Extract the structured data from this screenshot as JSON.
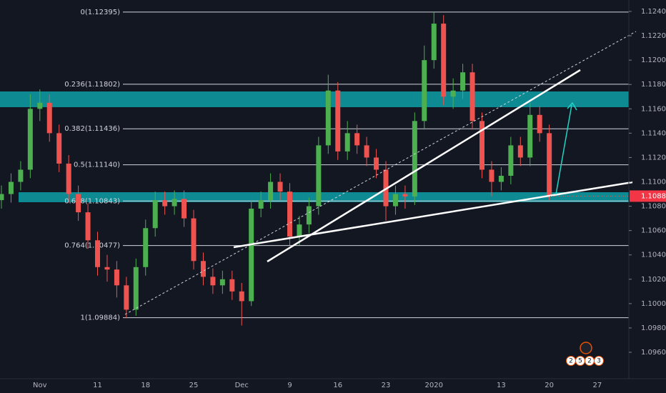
{
  "chart_data": {
    "type": "candlestick",
    "categories": [
      null,
      null,
      null,
      null,
      "Nov",
      null,
      null,
      null,
      null,
      null,
      "11",
      null,
      null,
      null,
      null,
      "18",
      null,
      null,
      null,
      null,
      "25",
      null,
      null,
      null,
      null,
      "Dec",
      null,
      null,
      null,
      null,
      "9",
      null,
      null,
      null,
      null,
      "16",
      null,
      null,
      null,
      null,
      "23",
      null,
      null,
      null,
      null,
      "2020",
      null,
      null,
      null,
      null,
      null,
      null,
      "13",
      null,
      null,
      null,
      null,
      "20",
      null,
      null,
      null,
      null,
      "27"
    ],
    "open": [
      1.1085,
      1.109,
      1.11,
      1.111,
      1.116,
      1.1165,
      1.114,
      1.1115,
      1.109,
      1.1075,
      1.1052,
      1.103,
      1.1028,
      1.1015,
      1.0995,
      1.103,
      1.1062,
      1.1085,
      1.108,
      1.1086,
      1.107,
      1.1035,
      1.1022,
      1.1015,
      1.102,
      1.101,
      1.1002,
      1.1078,
      1.1085,
      1.11,
      1.1092,
      1.1055,
      1.1065,
      1.108,
      1.113,
      1.1175,
      1.1125,
      1.114,
      1.113,
      1.112,
      1.111,
      1.108,
      1.109,
      1.1088,
      1.115,
      1.12,
      1.123,
      1.117,
      1.1175,
      1.119,
      1.115,
      1.111,
      1.11,
      1.1105,
      1.113,
      1.112,
      1.1155,
      1.114,
      null,
      null,
      null,
      null,
      null
    ],
    "high": [
      1.1097,
      1.1107,
      1.1117,
      1.1172,
      1.1176,
      1.1172,
      1.1147,
      1.1122,
      1.1097,
      1.1082,
      1.1059,
      1.104,
      1.1035,
      1.1022,
      1.1037,
      1.1069,
      1.1092,
      1.1092,
      1.1093,
      1.1093,
      1.1077,
      1.1042,
      1.1029,
      1.1027,
      1.1027,
      1.1017,
      1.1085,
      1.1092,
      1.1107,
      1.1107,
      1.1099,
      1.1072,
      1.1087,
      1.1137,
      1.1188,
      1.1182,
      1.115,
      1.1147,
      1.1137,
      1.1127,
      1.1117,
      1.1097,
      1.1097,
      1.1157,
      1.1212,
      1.124,
      1.1237,
      1.1185,
      1.1197,
      1.1197,
      1.1157,
      1.1117,
      1.1112,
      1.1137,
      1.1137,
      1.1165,
      1.1162,
      1.1147,
      null,
      null,
      null,
      null,
      null
    ],
    "low": [
      1.1078,
      1.1083,
      1.1093,
      1.1103,
      1.115,
      1.1133,
      1.1108,
      1.1083,
      1.1068,
      1.1045,
      1.1023,
      1.1018,
      1.1005,
      1.0988,
      1.099,
      1.1023,
      1.1055,
      1.1073,
      1.1073,
      1.1063,
      1.1028,
      1.1015,
      1.1008,
      1.1008,
      1.1003,
      1.0982,
      1.0998,
      1.1071,
      1.1078,
      1.1085,
      1.1048,
      1.1048,
      1.1058,
      1.1073,
      1.1123,
      1.1118,
      1.1118,
      1.1123,
      1.1113,
      1.1103,
      1.1068,
      1.1073,
      1.1078,
      1.1081,
      1.1143,
      1.1193,
      1.1163,
      1.116,
      1.1168,
      1.1143,
      1.1103,
      1.1088,
      1.1093,
      1.1098,
      1.1113,
      1.1113,
      1.1133,
      1.1085,
      null,
      null,
      null,
      null,
      null
    ],
    "close": [
      1.109,
      1.11,
      1.111,
      1.116,
      1.1165,
      1.114,
      1.1115,
      1.109,
      1.1075,
      1.1052,
      1.103,
      1.1028,
      1.1015,
      1.0995,
      1.103,
      1.1062,
      1.1085,
      1.108,
      1.1086,
      1.107,
      1.1035,
      1.1022,
      1.1015,
      1.102,
      1.101,
      1.1002,
      1.1078,
      1.1085,
      1.11,
      1.1092,
      1.1055,
      1.1065,
      1.108,
      1.113,
      1.1175,
      1.1125,
      1.114,
      1.113,
      1.112,
      1.111,
      1.108,
      1.109,
      1.1088,
      1.115,
      1.12,
      1.123,
      1.117,
      1.1175,
      1.119,
      1.115,
      1.111,
      1.11,
      1.1105,
      1.113,
      1.112,
      1.1155,
      1.114,
      1.1088,
      null,
      null,
      null,
      null,
      null
    ],
    "up_color": "#4caf50",
    "down_color": "#ef5350",
    "ylim": [
      1.09383,
      1.12494
    ],
    "yticks": [
      {
        "value": 1.096,
        "label": "1.09600"
      },
      {
        "value": 1.098,
        "label": "1.09800"
      },
      {
        "value": 1.1,
        "label": "1.10000"
      },
      {
        "value": 1.102,
        "label": "1.10200"
      },
      {
        "value": 1.104,
        "label": "1.10400"
      },
      {
        "value": 1.106,
        "label": "1.10600"
      },
      {
        "value": 1.108,
        "label": "1.10800"
      },
      {
        "value": 1.11,
        "label": "1.11000"
      },
      {
        "value": 1.112,
        "label": "1.11200"
      },
      {
        "value": 1.114,
        "label": "1.11400"
      },
      {
        "value": 1.116,
        "label": "1.11600"
      },
      {
        "value": 1.118,
        "label": "1.11800"
      },
      {
        "value": 1.12,
        "label": "1.12000"
      },
      {
        "value": 1.122,
        "label": "1.12200"
      },
      {
        "value": 1.124,
        "label": "1.12400"
      }
    ],
    "fib_levels": [
      {
        "value": 1.12395,
        "label": "0(1.12395)"
      },
      {
        "value": 1.11802,
        "label": "0.236(1.11802)"
      },
      {
        "value": 1.11436,
        "label": "0.382(1.11436)"
      },
      {
        "value": 1.1114,
        "label": "0.5(1.11140)"
      },
      {
        "value": 1.10843,
        "label": "0.618(1.10843)"
      },
      {
        "value": 1.10477,
        "label": "0.764(1.10477)"
      },
      {
        "value": 1.09884,
        "label": "1(1.09884)"
      }
    ],
    "last_price": {
      "value": 1.10883,
      "label": "1.10883"
    },
    "badges": [
      "2",
      "5",
      "2",
      "3"
    ]
  }
}
